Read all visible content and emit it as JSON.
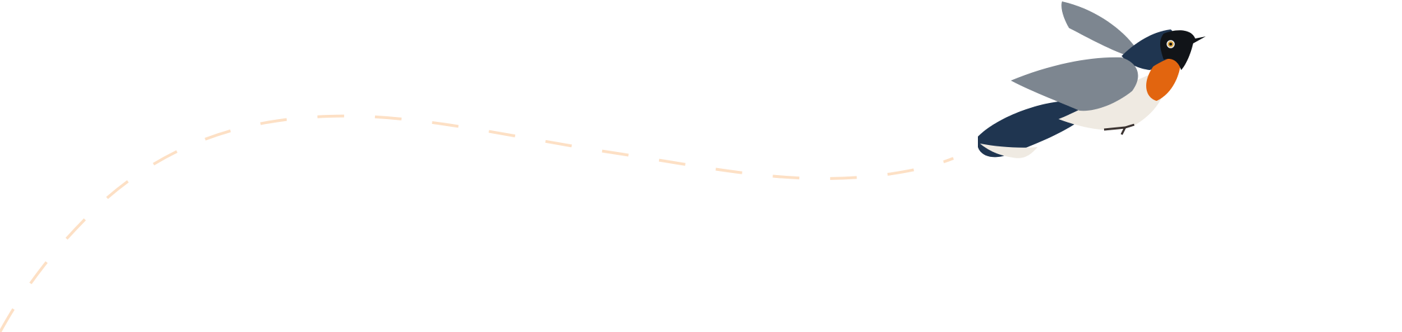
{
  "illustration": {
    "subject": "bird",
    "flight_path_style": "dashed",
    "colors": {
      "background": "#ffffff",
      "flight_path": "#fde0c5",
      "bird_back": "#1f3550",
      "bird_wing": "#7d8690",
      "bird_throat": "#e2650f",
      "bird_belly": "#efeae2",
      "bird_head": "#111418"
    }
  }
}
